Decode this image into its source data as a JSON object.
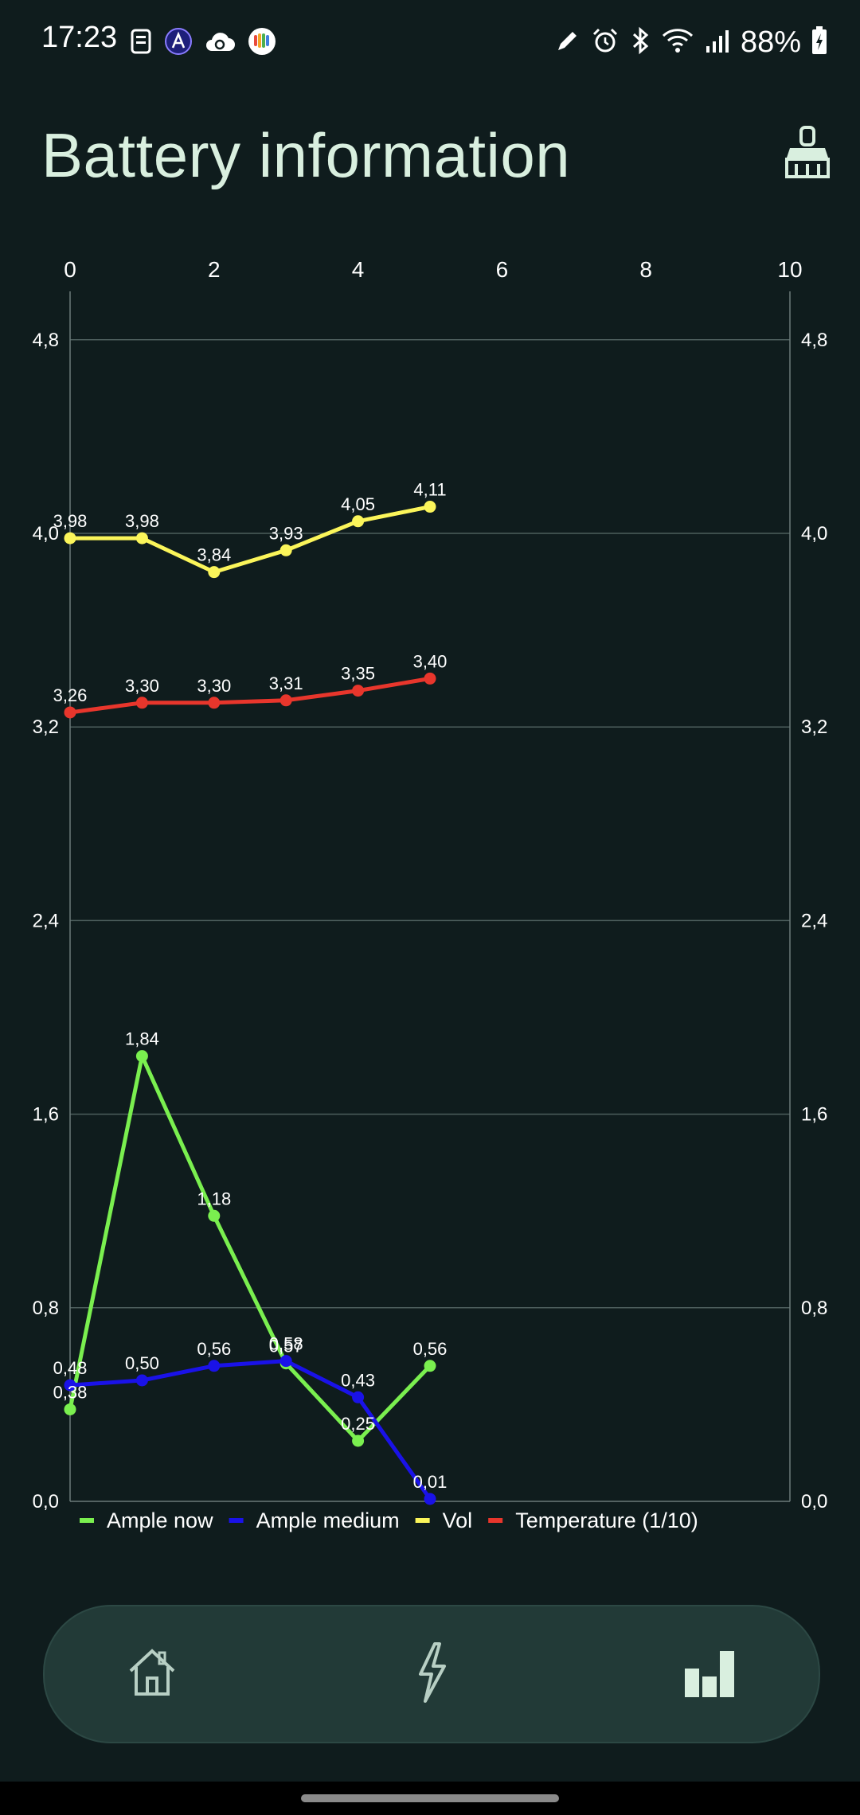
{
  "status_bar": {
    "time": "17:23",
    "battery_percent": "88%",
    "left_icons": [
      "sim-card-icon",
      "a-circle-icon",
      "cloud-sync-icon",
      "colorful-heart-app-icon"
    ],
    "right_icons": [
      "pencil-icon",
      "alarm-icon",
      "bluetooth-icon",
      "wifi-icon",
      "signal-icon",
      "battery-charging-icon"
    ]
  },
  "header": {
    "title": "Battery information",
    "action_icon": "broom-icon"
  },
  "chart_data": {
    "type": "line",
    "x": [
      0,
      1,
      2,
      3,
      4,
      5
    ],
    "xlim": [
      0,
      10
    ],
    "x_ticks": [
      0,
      2,
      4,
      6,
      8,
      10
    ],
    "x_tick_labels": [
      "0",
      "2",
      "4",
      "6",
      "8",
      "10"
    ],
    "ylim": [
      0,
      5
    ],
    "y_ticks": [
      0,
      0.8,
      1.6,
      2.4,
      3.2,
      4.0,
      4.8
    ],
    "y_tick_labels": [
      "0,0",
      "0,8",
      "1,6",
      "2,4",
      "3,2",
      "4,0",
      "4,8"
    ],
    "grid": true,
    "legend_position": "bottom-left",
    "series": [
      {
        "name": "Ample now",
        "color": "#7aef4f",
        "values": [
          0.38,
          1.84,
          1.18,
          0.57,
          0.25,
          0.56
        ],
        "labels": [
          "0,38",
          "1,84",
          "1,18",
          "0,57",
          "0,25",
          "0,56"
        ]
      },
      {
        "name": "Ample medium",
        "color": "#1a12e8",
        "values": [
          0.48,
          0.5,
          0.56,
          0.58,
          0.43,
          0.01
        ],
        "labels": [
          "0,48",
          "0,50",
          "0,56",
          "0,58",
          "0,43",
          "0,01"
        ]
      },
      {
        "name": "Vol",
        "color": "#fbf55a",
        "values": [
          3.98,
          3.98,
          3.84,
          3.93,
          4.05,
          4.11
        ],
        "labels": [
          "3,98",
          "3,98",
          "3,84",
          "3,93",
          "4,05",
          "4,11"
        ]
      },
      {
        "name": "Temperature (1/10)",
        "color": "#e8362c",
        "values": [
          3.26,
          3.3,
          3.3,
          3.31,
          3.35,
          3.4
        ],
        "labels": [
          "3,26",
          "3,30",
          "3,30",
          "3,31",
          "3,35",
          "3,40"
        ]
      }
    ]
  },
  "nav": {
    "items": [
      {
        "id": "home",
        "icon": "home-icon",
        "active": false
      },
      {
        "id": "charge",
        "icon": "lightning-icon",
        "active": false
      },
      {
        "id": "stats",
        "icon": "bar-chart-icon",
        "active": true
      }
    ]
  }
}
